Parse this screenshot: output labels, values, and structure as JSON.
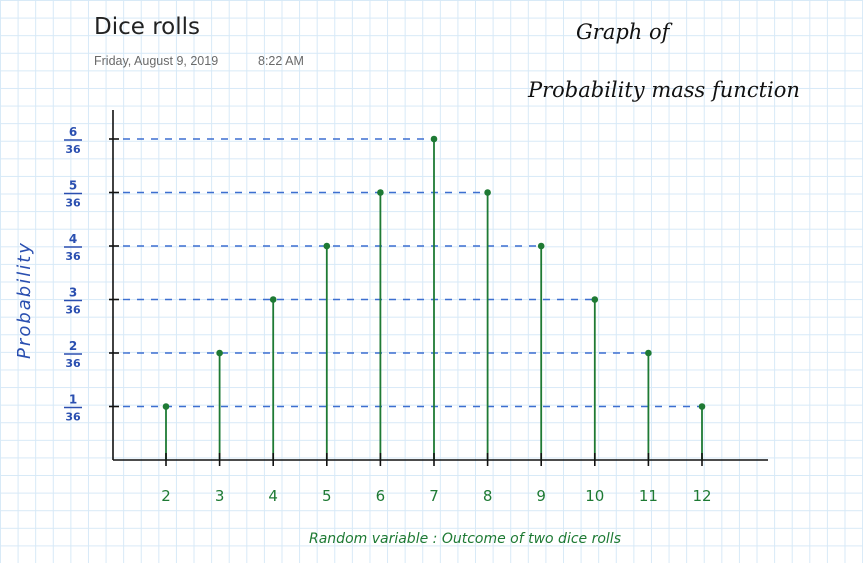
{
  "page": {
    "title": "Dice rolls",
    "date": "Friday, August 9, 2019",
    "time": "8:22 AM"
  },
  "chart_data": {
    "type": "bar",
    "title_line1": "Graph of",
    "title_line2": "Probability mass function",
    "xlabel": "Random variable : Outcome of two dice rolls",
    "ylabel": "Probability",
    "categories": [
      "2",
      "3",
      "4",
      "5",
      "6",
      "7",
      "8",
      "9",
      "10",
      "11",
      "12"
    ],
    "category_labels": [
      "2",
      "3",
      "4",
      "5",
      "6",
      "7",
      "8",
      "9",
      "10",
      "11",
      "12"
    ],
    "values": [
      1,
      2,
      3,
      4,
      5,
      6,
      5,
      4,
      3,
      2,
      1
    ],
    "denominator": 36,
    "y_ticks": [
      1,
      2,
      3,
      4,
      5,
      6
    ],
    "ylim": [
      0,
      6
    ],
    "grid": "dashed horizontal guide lines",
    "colors": {
      "stems": "#1e7a34",
      "axis_labels": "#2a4fb0",
      "guides": "#3d6fd0",
      "axes": "#111111"
    }
  }
}
